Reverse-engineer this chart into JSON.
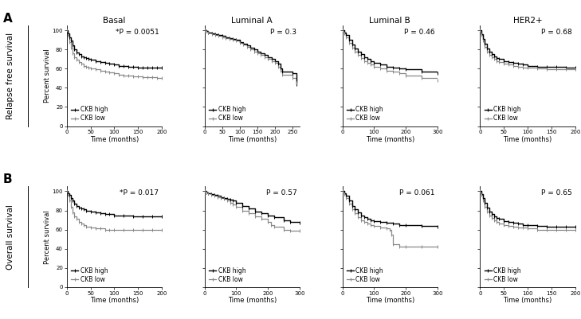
{
  "row_labels": [
    "A",
    "B"
  ],
  "col_titles": [
    "Basal",
    "Luminal A",
    "Luminal B",
    "HER2+"
  ],
  "row_ylabels": [
    "Relapse free survival",
    "Overall survival"
  ],
  "xlabel": "Time (months)",
  "ylabel_inner": "Percent survival",
  "legend_labels": [
    "CKB high",
    "CKB low"
  ],
  "pvalues": [
    [
      "*P = 0.0051",
      "P = 0.3",
      "P = 0.46",
      "P = 0.68"
    ],
    [
      "*P = 0.017",
      "P = 0.57",
      "P = 0.061",
      "P = 0.65"
    ]
  ],
  "xlims": [
    [
      [
        0,
        200
      ],
      [
        0,
        270
      ],
      [
        0,
        300
      ],
      [
        0,
        200
      ]
    ],
    [
      [
        0,
        200
      ],
      [
        0,
        300
      ],
      [
        0,
        300
      ],
      [
        0,
        200
      ]
    ]
  ],
  "xticks": [
    [
      [
        0,
        50,
        100,
        150,
        200
      ],
      [
        0,
        50,
        100,
        150,
        200,
        250
      ],
      [
        0,
        100,
        200,
        300
      ],
      [
        0,
        50,
        100,
        150,
        200
      ]
    ],
    [
      [
        0,
        50,
        100,
        150,
        200
      ],
      [
        0,
        100,
        200,
        300
      ],
      [
        0,
        100,
        200,
        300
      ],
      [
        0,
        50,
        100,
        150,
        200
      ]
    ]
  ],
  "curves": {
    "A_Basal_high": {
      "t": [
        0,
        2,
        5,
        8,
        12,
        16,
        20,
        25,
        30,
        35,
        40,
        45,
        50,
        60,
        70,
        80,
        90,
        100,
        110,
        120,
        130,
        140,
        150,
        160,
        170,
        180,
        190,
        200
      ],
      "s": [
        100,
        97,
        93,
        89,
        84,
        80,
        77,
        75,
        73,
        72,
        71,
        70,
        69,
        68,
        67,
        66,
        65,
        64,
        63,
        63,
        62,
        62,
        61,
        61,
        61,
        61,
        61,
        61
      ]
    },
    "A_Basal_low": {
      "t": [
        0,
        2,
        5,
        8,
        12,
        16,
        20,
        25,
        30,
        35,
        40,
        45,
        50,
        60,
        70,
        80,
        90,
        100,
        110,
        120,
        130,
        140,
        150,
        160,
        170,
        180,
        190,
        200
      ],
      "s": [
        100,
        95,
        88,
        82,
        76,
        72,
        69,
        67,
        65,
        63,
        62,
        61,
        60,
        59,
        58,
        57,
        56,
        55,
        54,
        53,
        53,
        52,
        52,
        51,
        51,
        51,
        50,
        50
      ]
    },
    "A_LumA_high": {
      "t": [
        0,
        5,
        10,
        20,
        30,
        40,
        50,
        60,
        70,
        80,
        90,
        100,
        110,
        120,
        130,
        140,
        150,
        160,
        170,
        180,
        190,
        200,
        210,
        215,
        220,
        250,
        260
      ],
      "s": [
        100,
        99,
        98,
        97,
        96,
        95,
        94,
        93,
        92,
        91,
        90,
        88,
        86,
        84,
        82,
        80,
        78,
        76,
        74,
        72,
        70,
        68,
        65,
        60,
        57,
        55,
        44
      ]
    },
    "A_LumA_low": {
      "t": [
        0,
        5,
        10,
        20,
        30,
        40,
        50,
        60,
        70,
        80,
        90,
        100,
        110,
        120,
        130,
        140,
        150,
        160,
        170,
        180,
        190,
        200,
        210,
        215,
        220,
        250,
        260
      ],
      "s": [
        100,
        99,
        98,
        96,
        95,
        94,
        93,
        92,
        91,
        90,
        89,
        87,
        85,
        83,
        80,
        78,
        76,
        74,
        72,
        70,
        68,
        66,
        62,
        58,
        54,
        50,
        45
      ]
    },
    "A_LumB_high": {
      "t": [
        0,
        5,
        10,
        20,
        30,
        40,
        50,
        60,
        70,
        80,
        90,
        100,
        120,
        140,
        160,
        180,
        200,
        250,
        300
      ],
      "s": [
        100,
        98,
        95,
        90,
        85,
        81,
        78,
        75,
        72,
        70,
        68,
        66,
        64,
        62,
        61,
        60,
        59,
        57,
        55
      ]
    },
    "A_LumB_low": {
      "t": [
        0,
        5,
        10,
        20,
        30,
        40,
        50,
        60,
        70,
        80,
        90,
        100,
        120,
        140,
        160,
        180,
        200,
        250,
        300
      ],
      "s": [
        100,
        97,
        93,
        87,
        82,
        78,
        74,
        71,
        68,
        66,
        64,
        62,
        60,
        58,
        57,
        55,
        53,
        50,
        48
      ]
    },
    "A_HER2_high": {
      "t": [
        0,
        3,
        6,
        10,
        15,
        20,
        25,
        30,
        35,
        40,
        50,
        60,
        70,
        80,
        90,
        100,
        120,
        140,
        160,
        180,
        200
      ],
      "s": [
        100,
        96,
        91,
        86,
        81,
        78,
        75,
        73,
        71,
        70,
        68,
        67,
        66,
        65,
        64,
        63,
        62,
        62,
        62,
        61,
        61
      ]
    },
    "A_HER2_low": {
      "t": [
        0,
        3,
        6,
        10,
        15,
        20,
        25,
        30,
        35,
        40,
        50,
        60,
        70,
        80,
        90,
        100,
        120,
        140,
        160,
        180,
        200
      ],
      "s": [
        100,
        95,
        89,
        83,
        78,
        74,
        72,
        70,
        68,
        67,
        65,
        64,
        63,
        62,
        61,
        61,
        60,
        59,
        59,
        59,
        59
      ]
    },
    "B_Basal_high": {
      "t": [
        0,
        2,
        5,
        8,
        12,
        16,
        20,
        25,
        30,
        35,
        40,
        50,
        60,
        70,
        80,
        90,
        100,
        120,
        140,
        160,
        180,
        200
      ],
      "s": [
        100,
        98,
        96,
        93,
        90,
        87,
        85,
        83,
        82,
        81,
        80,
        79,
        78,
        77,
        76,
        76,
        75,
        75,
        74,
        74,
        74,
        74
      ]
    },
    "B_Basal_low": {
      "t": [
        0,
        2,
        5,
        8,
        12,
        16,
        20,
        25,
        30,
        35,
        40,
        50,
        60,
        70,
        80,
        90,
        100,
        120,
        140,
        160,
        180,
        200
      ],
      "s": [
        100,
        96,
        90,
        84,
        78,
        74,
        71,
        68,
        66,
        65,
        63,
        62,
        61,
        61,
        60,
        60,
        60,
        60,
        60,
        60,
        60,
        60
      ]
    },
    "B_LumA_high": {
      "t": [
        0,
        5,
        10,
        20,
        30,
        40,
        50,
        60,
        70,
        80,
        90,
        100,
        120,
        140,
        160,
        180,
        200,
        220,
        250,
        270,
        300
      ],
      "s": [
        100,
        99,
        98,
        97,
        96,
        95,
        94,
        93,
        92,
        91,
        90,
        88,
        85,
        82,
        79,
        77,
        75,
        73,
        70,
        68,
        67
      ]
    },
    "B_LumA_low": {
      "t": [
        0,
        5,
        10,
        20,
        30,
        40,
        50,
        60,
        70,
        80,
        90,
        100,
        120,
        140,
        160,
        180,
        200,
        210,
        220,
        250,
        270,
        300
      ],
      "s": [
        100,
        99,
        98,
        96,
        95,
        94,
        93,
        92,
        90,
        88,
        86,
        84,
        80,
        77,
        74,
        71,
        68,
        65,
        63,
        60,
        59,
        59
      ]
    },
    "B_LumB_high": {
      "t": [
        0,
        5,
        10,
        20,
        30,
        40,
        50,
        60,
        70,
        80,
        90,
        100,
        120,
        140,
        160,
        180,
        200,
        250,
        300
      ],
      "s": [
        100,
        98,
        95,
        90,
        85,
        81,
        78,
        75,
        73,
        71,
        70,
        69,
        68,
        67,
        66,
        65,
        65,
        64,
        63
      ]
    },
    "B_LumB_low": {
      "t": [
        0,
        5,
        10,
        20,
        30,
        40,
        50,
        60,
        70,
        80,
        90,
        100,
        120,
        140,
        150,
        155,
        160,
        180,
        200,
        250,
        300
      ],
      "s": [
        100,
        97,
        93,
        87,
        81,
        77,
        73,
        70,
        68,
        66,
        65,
        64,
        62,
        61,
        60,
        55,
        45,
        42,
        42,
        42,
        42
      ]
    },
    "B_HER2_high": {
      "t": [
        0,
        3,
        6,
        10,
        15,
        20,
        25,
        30,
        35,
        40,
        50,
        60,
        70,
        80,
        90,
        100,
        120,
        140,
        160,
        180,
        200
      ],
      "s": [
        100,
        97,
        93,
        88,
        83,
        79,
        76,
        74,
        72,
        71,
        69,
        68,
        67,
        66,
        65,
        65,
        64,
        63,
        63,
        63,
        63
      ]
    },
    "B_HER2_low": {
      "t": [
        0,
        3,
        6,
        10,
        15,
        20,
        25,
        30,
        35,
        40,
        50,
        60,
        70,
        80,
        90,
        100,
        120,
        140,
        160,
        180,
        200
      ],
      "s": [
        100,
        96,
        90,
        84,
        79,
        75,
        72,
        70,
        68,
        66,
        65,
        64,
        63,
        62,
        62,
        61,
        60,
        60,
        60,
        60,
        60
      ]
    }
  },
  "line_color_high": "#000000",
  "line_color_low": "#888888",
  "background": "#ffffff",
  "font_size_title": 7.5,
  "font_size_label": 6,
  "font_size_pval": 6.5,
  "font_size_legend": 5.5,
  "font_size_row_label": 7.5,
  "font_size_letter": 11
}
